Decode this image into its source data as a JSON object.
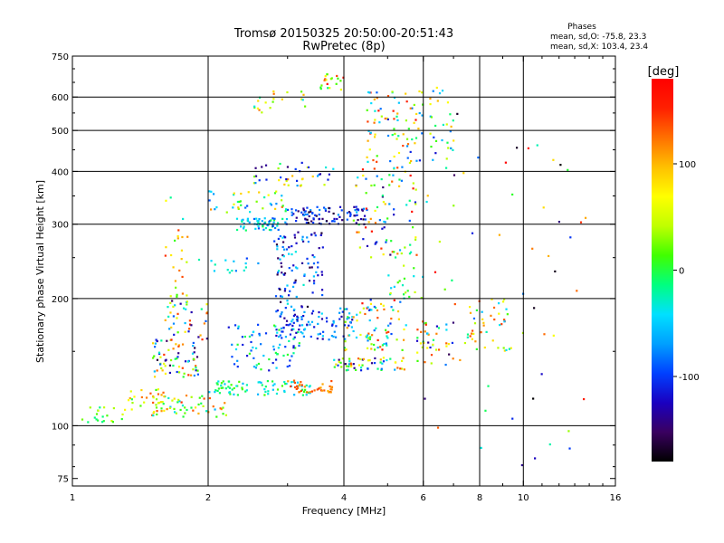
{
  "chart_data": {
    "type": "scatter",
    "title_line1": "Tromsø 20150325 20:50:00-20:51:43",
    "title_line2": "RwPretec (8p)",
    "xlabel": "Frequency [MHz]",
    "ylabel": "Stationary phase Virtual Height [km]",
    "x_scale": "log",
    "y_scale": "log",
    "xlim": [
      1,
      16
    ],
    "ylim": [
      72,
      750
    ],
    "x_ticks": [
      1,
      2,
      4,
      6,
      8,
      10,
      16
    ],
    "x_tick_labels": [
      "1",
      "2",
      "4",
      "6",
      "8",
      "10",
      "16"
    ],
    "x_grid": [
      2,
      4,
      6,
      8,
      10
    ],
    "y_ticks": [
      75,
      100,
      200,
      300,
      400,
      500,
      600,
      750
    ],
    "y_tick_labels": [
      "75",
      "100",
      "200",
      "300",
      "400",
      "500",
      "600",
      "750"
    ],
    "y_grid": [
      100,
      200,
      300,
      400,
      500,
      600
    ],
    "grid": true,
    "stats": {
      "title": "Phases",
      "line_o": "mean, sd,O: -75.8, 23.3",
      "line_x": "mean, sd,X: 103.4, 23.4"
    },
    "colorbar": {
      "label": "[deg]",
      "range": [
        -180,
        180
      ],
      "ticks": [
        100,
        0,
        -100
      ],
      "tick_labels": [
        "100",
        "0",
        "-100"
      ],
      "colormap": [
        "#000000",
        "#3a0060",
        "#1a00c0",
        "#0040ff",
        "#00a0ff",
        "#00e0ff",
        "#00ff80",
        "#40ff00",
        "#c0ff00",
        "#ffff00",
        "#ffc000",
        "#ff7000",
        "#ff2000",
        "#ff0000"
      ]
    },
    "clusters": [
      {
        "x": [
          1.02,
          1.3
        ],
        "y": [
          102,
          112
        ],
        "n": 20,
        "phase": [
          -20,
          60
        ]
      },
      {
        "x": [
          1.3,
          1.6
        ],
        "y": [
          108,
          122
        ],
        "n": 25,
        "phase": [
          -10,
          140
        ]
      },
      {
        "x": [
          1.5,
          2.2
        ],
        "y": [
          105,
          118
        ],
        "n": 60,
        "phase": [
          -60,
          160
        ]
      },
      {
        "x": [
          1.5,
          1.9
        ],
        "y": [
          130,
          160
        ],
        "n": 70,
        "phase": [
          -170,
          160
        ]
      },
      {
        "x": [
          1.6,
          2.0
        ],
        "y": [
          160,
          200
        ],
        "n": 40,
        "phase": [
          -160,
          150
        ]
      },
      {
        "x": [
          1.6,
          1.8
        ],
        "y": [
          200,
          350
        ],
        "n": 25,
        "phase": [
          -40,
          150
        ]
      },
      {
        "x": [
          2.0,
          3.4
        ],
        "y": [
          118,
          128
        ],
        "n": 80,
        "phase": [
          -60,
          20
        ]
      },
      {
        "x": [
          3.0,
          3.8
        ],
        "y": [
          120,
          128
        ],
        "n": 40,
        "phase": [
          100,
          150
        ]
      },
      {
        "x": [
          2.2,
          3.2
        ],
        "y": [
          135,
          175
        ],
        "n": 70,
        "phase": [
          -120,
          10
        ]
      },
      {
        "x": [
          2.8,
          4.2
        ],
        "y": [
          160,
          190
        ],
        "n": 100,
        "phase": [
          -140,
          -40
        ]
      },
      {
        "x": [
          3.8,
          5.5
        ],
        "y": [
          135,
          145
        ],
        "n": 60,
        "phase": [
          -150,
          160
        ]
      },
      {
        "x": [
          4.0,
          5.5
        ],
        "y": [
          150,
          200
        ],
        "n": 80,
        "phase": [
          -120,
          170
        ]
      },
      {
        "x": [
          2.8,
          3.6
        ],
        "y": [
          190,
          290
        ],
        "n": 100,
        "phase": [
          -170,
          -30
        ]
      },
      {
        "x": [
          2.3,
          3.0
        ],
        "y": [
          290,
          310
        ],
        "n": 60,
        "phase": [
          -110,
          0
        ]
      },
      {
        "x": [
          3.0,
          4.5
        ],
        "y": [
          300,
          330
        ],
        "n": 90,
        "phase": [
          -170,
          -70
        ]
      },
      {
        "x": [
          4.2,
          5.8
        ],
        "y": [
          250,
          420
        ],
        "n": 90,
        "phase": [
          -150,
          170
        ]
      },
      {
        "x": [
          4.5,
          6.0
        ],
        "y": [
          420,
          620
        ],
        "n": 80,
        "phase": [
          -120,
          170
        ]
      },
      {
        "x": [
          2.0,
          3.0
        ],
        "y": [
          320,
          360
        ],
        "n": 40,
        "phase": [
          -100,
          130
        ]
      },
      {
        "x": [
          2.5,
          3.8
        ],
        "y": [
          370,
          420
        ],
        "n": 40,
        "phase": [
          -150,
          120
        ]
      },
      {
        "x": [
          2.5,
          3.3
        ],
        "y": [
          550,
          620
        ],
        "n": 20,
        "phase": [
          -40,
          140
        ]
      },
      {
        "x": [
          3.5,
          4.0
        ],
        "y": [
          620,
          680
        ],
        "n": 20,
        "phase": [
          -30,
          170
        ]
      },
      {
        "x": [
          5.8,
          7.0
        ],
        "y": [
          140,
          180
        ],
        "n": 40,
        "phase": [
          -160,
          150
        ]
      },
      {
        "x": [
          6.2,
          7.0
        ],
        "y": [
          420,
          640
        ],
        "n": 30,
        "phase": [
          -120,
          120
        ]
      },
      {
        "x": [
          7.5,
          9.5
        ],
        "y": [
          150,
          200
        ],
        "n": 40,
        "phase": [
          -60,
          150
        ]
      },
      {
        "x": [
          6.0,
          14.0
        ],
        "y": [
          80,
          600
        ],
        "n": 60,
        "phase": [
          -180,
          180
        ]
      },
      {
        "x": [
          5.0,
          6.0
        ],
        "y": [
          200,
          240
        ],
        "n": 20,
        "phase": [
          -50,
          60
        ]
      },
      {
        "x": [
          1.9,
          2.6
        ],
        "y": [
          230,
          250
        ],
        "n": 15,
        "phase": [
          -100,
          -20
        ]
      }
    ]
  }
}
